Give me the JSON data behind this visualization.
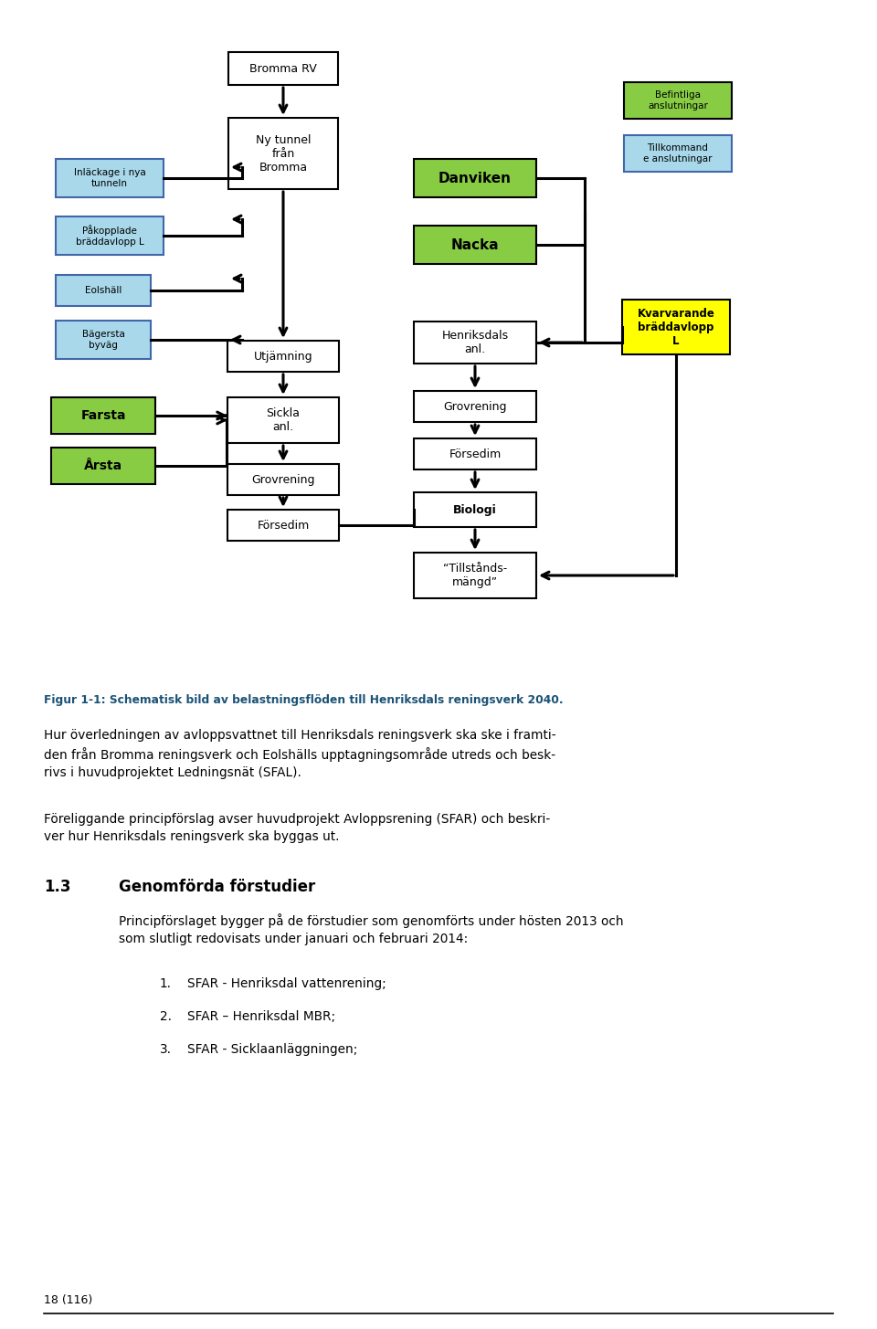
{
  "page_bg": "#ffffff",
  "diagram_title": "Figur 1-1: Schematisk bild av belastningsflöden till Henriksdals reningsverk 2040.",
  "para1": "Hur överledningen av avloppsvattnet till Henriksdals reningsverk ska ske i framtiden från Bromma reningsverk och Eolshälls upptagningsområde utreds och beskrivs i huvudprojektet Ledningsnät (SFAL).",
  "para2": "Föreliggande principförslag avser huvudprojekt Avloppsrening (SFAR) och beskriver hur Henriksdals reningsverk ska byggas ut.",
  "section_num": "1.3",
  "section_title": "Genomförda förstudier",
  "section_para": "Principförslaget bygger på de förstudier som genomförts under hösten 2013 och som slutligt redovisats under januari och februari 2014:",
  "list_items": [
    "SFAR - Henriksdal vattenrening;",
    "SFAR – Henriksdal MBR;",
    "SFAR - Sicklaanläggningen;"
  ],
  "page_footer": "18 (116)"
}
